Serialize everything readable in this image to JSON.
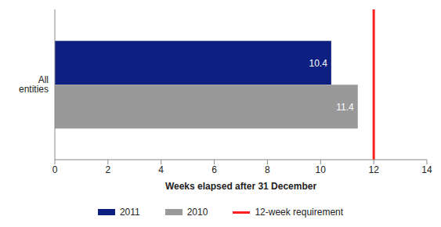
{
  "chart_data": {
    "type": "bar",
    "orientation": "horizontal",
    "categories": [
      "All entities"
    ],
    "series": [
      {
        "name": "2011",
        "color": "#0d1f80",
        "values": [
          10.4
        ]
      },
      {
        "name": "2010",
        "color": "#999999",
        "values": [
          11.4
        ]
      }
    ],
    "x_label": "Weeks elapsed after 31 December",
    "xlim": [
      0,
      14
    ],
    "xticks": [
      0,
      2,
      4,
      6,
      8,
      10,
      12,
      14
    ],
    "reference_lines": [
      {
        "name": "12-week requirement",
        "value": 12,
        "color": "#ff2020"
      }
    ],
    "data_labels": true,
    "legend": "bottom"
  }
}
